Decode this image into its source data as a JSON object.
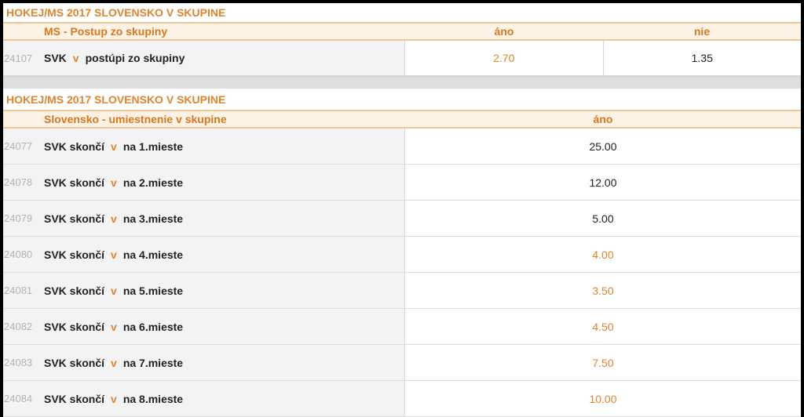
{
  "sections": [
    {
      "title": "HOKEJ/MS 2017 SLOVENSKO V SKUPINE",
      "header": {
        "market": "MS - Postup zo skupiny",
        "columns": [
          "áno",
          "nie"
        ]
      },
      "rows": [
        {
          "id": "24107",
          "team": "SVK",
          "connector": "v",
          "text": "postúpi zo skupiny",
          "odds": [
            {
              "value": "2.70",
              "color": "#e0842e"
            },
            {
              "value": "1.35",
              "color": "#222222"
            }
          ]
        }
      ]
    },
    {
      "title": "HOKEJ/MS 2017 SLOVENSKO V SKUPINE",
      "header": {
        "market": "Slovensko - umiestnenie v skupine",
        "columns": [
          "áno"
        ]
      },
      "rows": [
        {
          "id": "24077",
          "team": "SVK skončí",
          "connector": "v",
          "text": "na 1.mieste",
          "odds": [
            {
              "value": "25.00",
              "color": "#222222"
            }
          ]
        },
        {
          "id": "24078",
          "team": "SVK skončí",
          "connector": "v",
          "text": "na 2.mieste",
          "odds": [
            {
              "value": "12.00",
              "color": "#222222"
            }
          ]
        },
        {
          "id": "24079",
          "team": "SVK skončí",
          "connector": "v",
          "text": "na 3.mieste",
          "odds": [
            {
              "value": "5.00",
              "color": "#222222"
            }
          ]
        },
        {
          "id": "24080",
          "team": "SVK skončí",
          "connector": "v",
          "text": "na 4.mieste",
          "odds": [
            {
              "value": "4.00",
              "color": "#e0842e"
            }
          ]
        },
        {
          "id": "24081",
          "team": "SVK skončí",
          "connector": "v",
          "text": "na 5.mieste",
          "odds": [
            {
              "value": "3.50",
              "color": "#e0842e"
            }
          ]
        },
        {
          "id": "24082",
          "team": "SVK skončí",
          "connector": "v",
          "text": "na 6.mieste",
          "odds": [
            {
              "value": "4.50",
              "color": "#e0842e"
            }
          ]
        },
        {
          "id": "24083",
          "team": "SVK skončí",
          "connector": "v",
          "text": "na 7.mieste",
          "odds": [
            {
              "value": "7.50",
              "color": "#e0842e"
            }
          ]
        },
        {
          "id": "24084",
          "team": "SVK skončí",
          "connector": "v",
          "text": "na 8.mieste",
          "odds": [
            {
              "value": "10.00",
              "color": "#e0842e"
            }
          ]
        }
      ]
    }
  ]
}
